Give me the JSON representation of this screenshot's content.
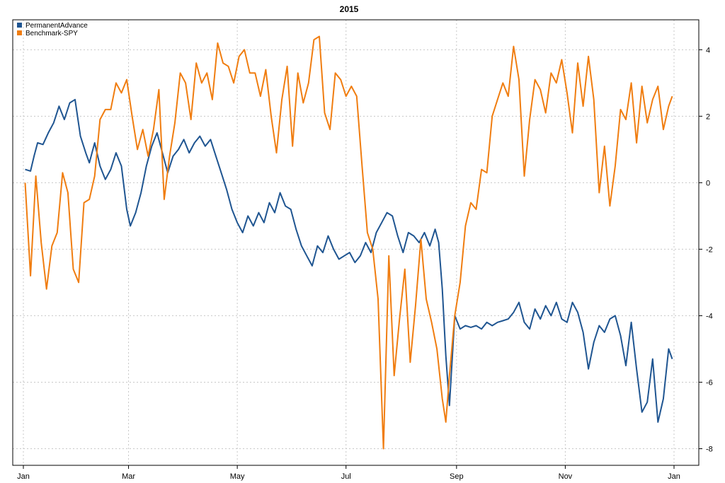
{
  "chart_data": {
    "type": "line",
    "title": "2015",
    "xlabel": "",
    "ylabel": "",
    "x_domain": [
      "2015-01-01",
      "2016-01-01"
    ],
    "ylim": [
      -8.5,
      4.9
    ],
    "y_ticks": [
      4,
      2,
      0,
      -2,
      -4,
      -6,
      -8
    ],
    "x_ticks": [
      {
        "date": "2015-01-01",
        "label": "Jan"
      },
      {
        "date": "2015-03-01",
        "label": "Mar"
      },
      {
        "date": "2015-05-01",
        "label": "May"
      },
      {
        "date": "2015-07-01",
        "label": "Jul"
      },
      {
        "date": "2015-09-01",
        "label": "Sep"
      },
      {
        "date": "2015-11-01",
        "label": "Nov"
      },
      {
        "date": "2016-01-01",
        "label": "Jan"
      }
    ],
    "grid": true,
    "y_axis_side": "right",
    "legend_position": "top-left",
    "series": [
      {
        "name": "PermanentAdvance",
        "color": "#1f5591",
        "x": [
          "2015-01-02",
          "2015-01-05",
          "2015-01-07",
          "2015-01-09",
          "2015-01-12",
          "2015-01-15",
          "2015-01-18",
          "2015-01-21",
          "2015-01-24",
          "2015-01-27",
          "2015-01-30",
          "2015-02-02",
          "2015-02-05",
          "2015-02-07",
          "2015-02-10",
          "2015-02-13",
          "2015-02-16",
          "2015-02-19",
          "2015-02-22",
          "2015-02-25",
          "2015-02-28",
          "2015-03-02",
          "2015-03-05",
          "2015-03-08",
          "2015-03-11",
          "2015-03-14",
          "2015-03-17",
          "2015-03-20",
          "2015-03-23",
          "2015-03-26",
          "2015-03-29",
          "2015-04-01",
          "2015-04-04",
          "2015-04-07",
          "2015-04-10",
          "2015-04-13",
          "2015-04-16",
          "2015-04-19",
          "2015-04-22",
          "2015-04-25",
          "2015-04-28",
          "2015-05-01",
          "2015-05-04",
          "2015-05-07",
          "2015-05-10",
          "2015-05-13",
          "2015-05-16",
          "2015-05-19",
          "2015-05-22",
          "2015-05-25",
          "2015-05-28",
          "2015-05-31",
          "2015-06-03",
          "2015-06-06",
          "2015-06-09",
          "2015-06-12",
          "2015-06-15",
          "2015-06-18",
          "2015-06-21",
          "2015-06-24",
          "2015-06-27",
          "2015-06-30",
          "2015-07-03",
          "2015-07-06",
          "2015-07-09",
          "2015-07-12",
          "2015-07-15",
          "2015-07-18",
          "2015-07-21",
          "2015-07-24",
          "2015-07-27",
          "2015-07-30",
          "2015-08-02",
          "2015-08-05",
          "2015-08-08",
          "2015-08-11",
          "2015-08-14",
          "2015-08-17",
          "2015-08-20",
          "2015-08-22",
          "2015-08-24",
          "2015-08-26",
          "2015-08-28",
          "2015-08-31",
          "2015-09-03",
          "2015-09-06",
          "2015-09-09",
          "2015-09-12",
          "2015-09-15",
          "2015-09-18",
          "2015-09-21",
          "2015-09-24",
          "2015-09-27",
          "2015-09-30",
          "2015-10-03",
          "2015-10-06",
          "2015-10-09",
          "2015-10-12",
          "2015-10-15",
          "2015-10-18",
          "2015-10-21",
          "2015-10-24",
          "2015-10-27",
          "2015-10-30",
          "2015-11-02",
          "2015-11-05",
          "2015-11-08",
          "2015-11-11",
          "2015-11-14",
          "2015-11-17",
          "2015-11-20",
          "2015-11-23",
          "2015-11-26",
          "2015-11-29",
          "2015-12-02",
          "2015-12-05",
          "2015-12-08",
          "2015-12-11",
          "2015-12-14",
          "2015-12-17",
          "2015-12-20",
          "2015-12-23",
          "2015-12-26",
          "2015-12-29",
          "2015-12-31"
        ],
        "values": [
          0.4,
          0.35,
          0.8,
          1.2,
          1.15,
          1.5,
          1.8,
          2.3,
          1.9,
          2.4,
          2.5,
          1.4,
          0.9,
          0.6,
          1.2,
          0.5,
          0.1,
          0.4,
          0.9,
          0.5,
          -0.8,
          -1.3,
          -0.9,
          -0.3,
          0.5,
          1.1,
          1.5,
          0.9,
          0.3,
          0.8,
          1.0,
          1.3,
          0.9,
          1.2,
          1.4,
          1.1,
          1.3,
          0.8,
          0.3,
          -0.2,
          -0.8,
          -1.2,
          -1.5,
          -1.0,
          -1.3,
          -0.9,
          -1.2,
          -0.6,
          -0.9,
          -0.3,
          -0.7,
          -0.8,
          -1.4,
          -1.9,
          -2.2,
          -2.5,
          -1.9,
          -2.1,
          -1.6,
          -2.0,
          -2.3,
          -2.2,
          -2.1,
          -2.4,
          -2.2,
          -1.8,
          -2.1,
          -1.5,
          -1.2,
          -0.9,
          -1.0,
          -1.6,
          -2.1,
          -1.5,
          -1.6,
          -1.8,
          -1.5,
          -1.9,
          -1.4,
          -1.8,
          -3.2,
          -5.2,
          -6.7,
          -4.0,
          -4.4,
          -4.3,
          -4.35,
          -4.3,
          -4.4,
          -4.2,
          -4.3,
          -4.2,
          -4.15,
          -4.1,
          -3.9,
          -3.6,
          -4.2,
          -4.4,
          -3.8,
          -4.1,
          -3.7,
          -4.0,
          -3.6,
          -4.1,
          -4.2,
          -3.6,
          -3.9,
          -4.5,
          -5.6,
          -4.8,
          -4.3,
          -4.5,
          -4.1,
          -4.0,
          -4.6,
          -5.5,
          -4.2,
          -5.6,
          -6.9,
          -6.6,
          -5.3,
          -7.2,
          -6.5,
          -5.0,
          -5.3
        ]
      },
      {
        "name": "Benchmark-SPY",
        "color": "#f07d10",
        "x": [
          "2015-01-02",
          "2015-01-05",
          "2015-01-08",
          "2015-01-11",
          "2015-01-14",
          "2015-01-17",
          "2015-01-20",
          "2015-01-23",
          "2015-01-26",
          "2015-01-29",
          "2015-02-01",
          "2015-02-04",
          "2015-02-07",
          "2015-02-10",
          "2015-02-13",
          "2015-02-16",
          "2015-02-19",
          "2015-02-22",
          "2015-02-25",
          "2015-02-28",
          "2015-03-03",
          "2015-03-06",
          "2015-03-09",
          "2015-03-12",
          "2015-03-15",
          "2015-03-18",
          "2015-03-21",
          "2015-03-24",
          "2015-03-27",
          "2015-03-30",
          "2015-04-02",
          "2015-04-05",
          "2015-04-08",
          "2015-04-11",
          "2015-04-14",
          "2015-04-17",
          "2015-04-20",
          "2015-04-23",
          "2015-04-26",
          "2015-04-29",
          "2015-05-02",
          "2015-05-05",
          "2015-05-08",
          "2015-05-11",
          "2015-05-14",
          "2015-05-17",
          "2015-05-20",
          "2015-05-23",
          "2015-05-26",
          "2015-05-29",
          "2015-06-01",
          "2015-06-04",
          "2015-06-07",
          "2015-06-10",
          "2015-06-13",
          "2015-06-16",
          "2015-06-19",
          "2015-06-22",
          "2015-06-25",
          "2015-06-28",
          "2015-07-01",
          "2015-07-04",
          "2015-07-07",
          "2015-07-10",
          "2015-07-13",
          "2015-07-16",
          "2015-07-19",
          "2015-07-22",
          "2015-07-25",
          "2015-07-28",
          "2015-07-31",
          "2015-08-03",
          "2015-08-06",
          "2015-08-09",
          "2015-08-12",
          "2015-08-15",
          "2015-08-18",
          "2015-08-21",
          "2015-08-24",
          "2015-08-26",
          "2015-08-28",
          "2015-08-31",
          "2015-09-03",
          "2015-09-06",
          "2015-09-09",
          "2015-09-12",
          "2015-09-15",
          "2015-09-18",
          "2015-09-21",
          "2015-09-24",
          "2015-09-27",
          "2015-09-30",
          "2015-10-03",
          "2015-10-06",
          "2015-10-09",
          "2015-10-12",
          "2015-10-15",
          "2015-10-18",
          "2015-10-21",
          "2015-10-24",
          "2015-10-27",
          "2015-10-30",
          "2015-11-02",
          "2015-11-05",
          "2015-11-08",
          "2015-11-11",
          "2015-11-14",
          "2015-11-17",
          "2015-11-20",
          "2015-11-23",
          "2015-11-26",
          "2015-11-29",
          "2015-12-02",
          "2015-12-05",
          "2015-12-08",
          "2015-12-11",
          "2015-12-14",
          "2015-12-17",
          "2015-12-20",
          "2015-12-23",
          "2015-12-26",
          "2015-12-29",
          "2015-12-31"
        ],
        "values": [
          0.0,
          -2.8,
          0.2,
          -1.8,
          -3.2,
          -1.9,
          -1.5,
          0.3,
          -0.3,
          -2.6,
          -3.0,
          -0.6,
          -0.5,
          0.2,
          1.9,
          2.2,
          2.2,
          3.0,
          2.7,
          3.1,
          2.0,
          1.0,
          1.6,
          0.8,
          1.6,
          2.8,
          -0.5,
          0.8,
          1.8,
          3.3,
          3.0,
          1.9,
          3.6,
          3.0,
          3.3,
          2.5,
          4.2,
          3.6,
          3.5,
          3.0,
          3.8,
          4.0,
          3.3,
          3.3,
          2.6,
          3.4,
          2.0,
          0.9,
          2.5,
          3.5,
          1.1,
          3.3,
          2.4,
          3.0,
          4.3,
          4.4,
          2.1,
          1.6,
          3.3,
          3.1,
          2.6,
          2.9,
          2.6,
          0.5,
          -1.5,
          -2.0,
          -3.5,
          -8.0,
          -2.2,
          -5.8,
          -4.1,
          -2.6,
          -5.4,
          -3.7,
          -1.7,
          -3.5,
          -4.2,
          -5.0,
          -6.5,
          -7.2,
          -5.8,
          -4.0,
          -3.0,
          -1.3,
          -0.6,
          -0.8,
          0.4,
          0.3,
          2.0,
          2.5,
          3.0,
          2.6,
          4.1,
          3.1,
          0.2,
          1.9,
          3.1,
          2.8,
          2.1,
          3.3,
          3.0,
          3.7,
          2.7,
          1.5,
          3.6,
          2.3,
          3.8,
          2.5,
          -0.3,
          1.1,
          -0.7,
          0.5,
          2.2,
          1.9,
          3.0,
          1.2,
          2.9,
          1.8,
          2.5,
          2.9,
          1.6,
          2.3,
          2.6
        ]
      }
    ]
  }
}
